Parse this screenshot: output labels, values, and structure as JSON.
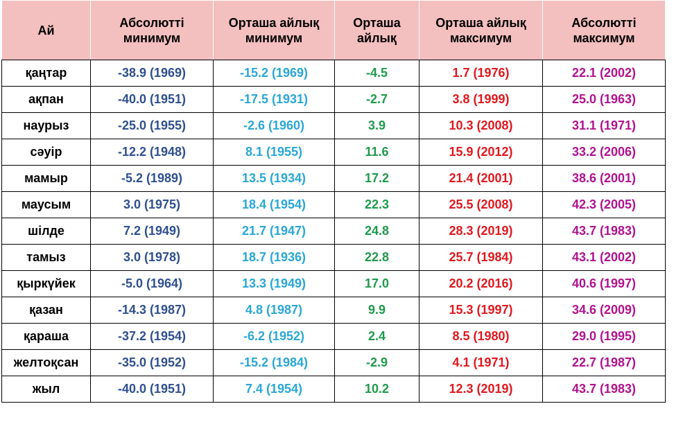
{
  "table": {
    "headers": [
      "Ай",
      "Абсолютті\nминимум",
      "Орташа айлық\nминимум",
      "Орташа\nайлық",
      "Орташа айлық\nмаксимум",
      "Абсолютті\nмаксимум"
    ],
    "rows": [
      {
        "month": "қаңтар",
        "abs_min": "-38.9 (1969)",
        "avg_min": "-15.2 (1969)",
        "avg": "-4.5",
        "avg_max": "1.7 (1976)",
        "abs_max": "22.1 (2002)"
      },
      {
        "month": "ақпан",
        "abs_min": "-40.0 (1951)",
        "avg_min": "-17.5 (1931)",
        "avg": "-2.7",
        "avg_max": "3.8 (1999)",
        "abs_max": "25.0 (1963)"
      },
      {
        "month": "наурыз",
        "abs_min": "-25.0 (1955)",
        "avg_min": "-2.6 (1960)",
        "avg": "3.9",
        "avg_max": "10.3 (2008)",
        "abs_max": "31.1 (1971)"
      },
      {
        "month": "сәуір",
        "abs_min": "-12.2 (1948)",
        "avg_min": "8.1 (1955)",
        "avg": "11.6",
        "avg_max": "15.9 (2012)",
        "abs_max": "33.2 (2006)"
      },
      {
        "month": "мамыр",
        "abs_min": "-5.2 (1989)",
        "avg_min": "13.5 (1934)",
        "avg": "17.2",
        "avg_max": "21.4 (2001)",
        "abs_max": "38.6 (2001)"
      },
      {
        "month": "маусым",
        "abs_min": "3.0 (1975)",
        "avg_min": "18.4 (1954)",
        "avg": "22.3",
        "avg_max": "25.5 (2008)",
        "abs_max": "42.3 (2005)"
      },
      {
        "month": "шілде",
        "abs_min": "7.2 (1949)",
        "avg_min": "21.7 (1947)",
        "avg": "24.8",
        "avg_max": "28.3 (2019)",
        "abs_max": "43.7 (1983)"
      },
      {
        "month": "тамыз",
        "abs_min": "3.0 (1978)",
        "avg_min": "18.7 (1936)",
        "avg": "22.8",
        "avg_max": "25.7 (1984)",
        "abs_max": "43.1 (2002)"
      },
      {
        "month": "қыркүйек",
        "abs_min": "-5.0 (1964)",
        "avg_min": "13.3 (1949)",
        "avg": "17.0",
        "avg_max": "20.2 (2016)",
        "abs_max": "40.6 (1997)"
      },
      {
        "month": "қазан",
        "abs_min": "-14.3 (1987)",
        "avg_min": "4.8 (1987)",
        "avg": "9.9",
        "avg_max": "15.3 (1997)",
        "abs_max": "34.6 (2009)"
      },
      {
        "month": "қараша",
        "abs_min": "-37.2 (1954)",
        "avg_min": "-6.2 (1952)",
        "avg": "2.4",
        "avg_max": "8.5 (1980)",
        "abs_max": "29.0 (1995)"
      },
      {
        "month": "желтоқсан",
        "abs_min": "-35.0 (1952)",
        "avg_min": "-15.2 (1984)",
        "avg": "-2.9",
        "avg_max": "4.1 (1971)",
        "abs_max": "22.7 (1987)"
      },
      {
        "month": "жыл",
        "abs_min": "-40.0 (1951)",
        "avg_min": "7.4 (1954)",
        "avg": "10.2",
        "avg_max": "12.3 (2019)",
        "abs_max": "43.7 (1983)"
      }
    ]
  },
  "colors": {
    "header_bg": "#f3bfbf",
    "abs_min": "#2e4f8f",
    "avg_min": "#29a7d6",
    "avg": "#1e9a4c",
    "avg_max": "#e0181e",
    "abs_max": "#b0128f"
  }
}
